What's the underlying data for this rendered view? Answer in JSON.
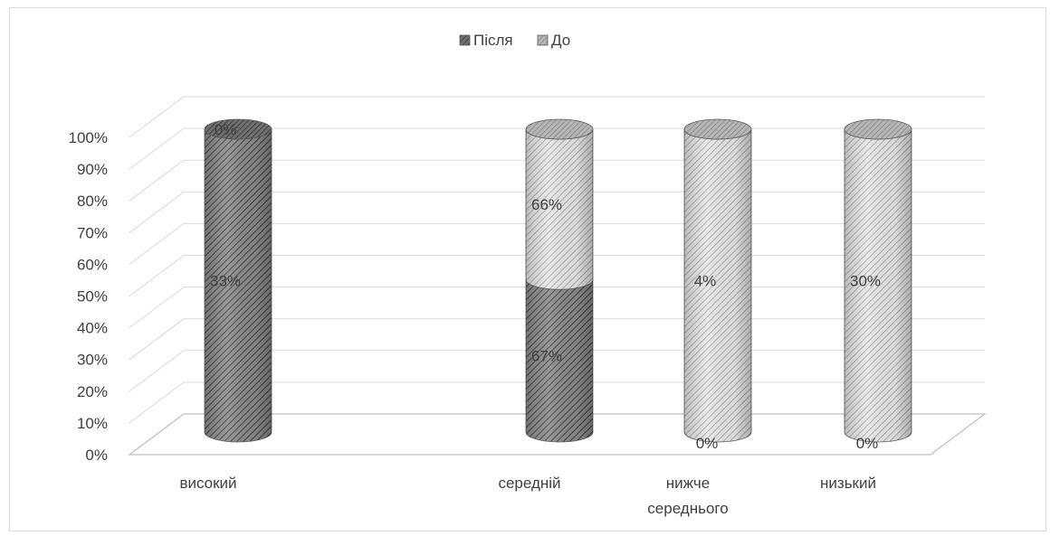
{
  "chart_data": {
    "type": "bar",
    "subtype": "stacked-100-percent-3d-cylinder",
    "categories": [
      "високий",
      "середній",
      "нижче середнього",
      "низький"
    ],
    "series": [
      {
        "name": "Після",
        "values": [
          33,
          67,
          0,
          0
        ],
        "labels": [
          "33%",
          "67%",
          "0%",
          "0%"
        ],
        "color": "#7f7f7f",
        "pattern": "dark-diagonal-hatch"
      },
      {
        "name": "До",
        "values": [
          0,
          66,
          4,
          30
        ],
        "labels": [
          "0%",
          "66%",
          "4%",
          "30%"
        ],
        "color": "#c8c8c8",
        "pattern": "light-diagonal-hatch"
      }
    ],
    "y_ticks": [
      "0%",
      "10%",
      "20%",
      "30%",
      "40%",
      "50%",
      "60%",
      "70%",
      "80%",
      "90%",
      "100%"
    ],
    "ylim": [
      0,
      100
    ],
    "grid": true,
    "legend_position": "top-center",
    "title": "",
    "xlabel": "",
    "ylabel": ""
  }
}
